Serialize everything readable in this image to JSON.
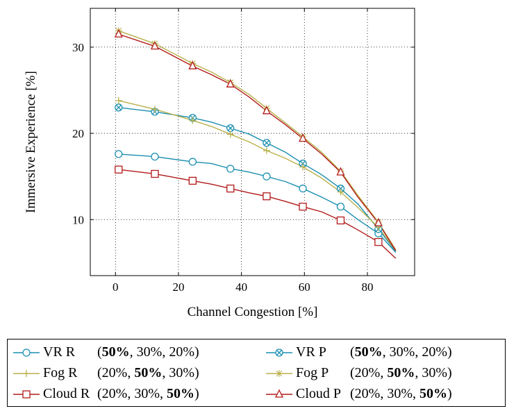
{
  "chart_data": {
    "type": "line",
    "xlabel": "Channel Congestion [%]",
    "ylabel": "Immersive Experience [%]",
    "xlim": [
      -8,
      95
    ],
    "ylim": [
      3.5,
      34.5
    ],
    "xticks": [
      0,
      20,
      40,
      60,
      80
    ],
    "yticks": [
      10,
      20,
      30
    ],
    "grid": "dotted",
    "legend_position": "below",
    "series": [
      {
        "name": "VR R",
        "color": "#1a8fb0",
        "marker": "circle",
        "x": [
          1,
          12.5,
          24.5,
          30.5,
          36.5,
          42.5,
          48,
          54,
          59.5,
          65.5,
          71.5,
          77,
          83.5,
          89
        ],
        "y": [
          17.6,
          17.3,
          16.7,
          16.5,
          15.9,
          15.5,
          15.0,
          14.4,
          13.6,
          12.6,
          11.5,
          10.0,
          8.4,
          6.2
        ],
        "marker_idx": [
          0,
          1,
          2,
          4,
          6,
          8,
          10,
          12
        ],
        "share": [
          "50%",
          "30%",
          "20%"
        ],
        "bold": 0
      },
      {
        "name": "VR P",
        "color": "#1a8fb0",
        "marker": "circle-cross",
        "x": [
          1,
          12.5,
          24.5,
          30.5,
          36.5,
          42.5,
          48,
          54,
          59.5,
          65.5,
          71.5,
          77,
          83.5,
          89
        ],
        "y": [
          23.0,
          22.5,
          21.8,
          21.3,
          20.6,
          19.9,
          18.9,
          17.8,
          16.5,
          15.2,
          13.6,
          11.8,
          8.9,
          6.3
        ],
        "marker_idx": [
          0,
          1,
          2,
          4,
          6,
          8,
          10,
          12
        ],
        "share": [
          "50%",
          "30%",
          "20%"
        ],
        "bold": 0
      },
      {
        "name": "Fog R",
        "color": "#b8b04a",
        "marker": "plus",
        "x": [
          1,
          12.5,
          24.5,
          30.5,
          36.5,
          42.5,
          48,
          54,
          59.5,
          65.5,
          71.5,
          77,
          83.5,
          89
        ],
        "y": [
          23.8,
          22.8,
          21.5,
          20.8,
          19.9,
          19.0,
          18.0,
          17.1,
          16.1,
          14.8,
          13.2,
          11.4,
          9.1,
          6.4
        ],
        "marker_idx": [
          0,
          1,
          2,
          4,
          6,
          8,
          10,
          12
        ],
        "share": [
          "20%",
          "50%",
          "30%"
        ],
        "bold": 1
      },
      {
        "name": "Fog P",
        "color": "#b8b04a",
        "marker": "star",
        "x": [
          1,
          12.5,
          24.5,
          30.5,
          36.5,
          42.5,
          48,
          54,
          59.5,
          65.5,
          71.5,
          77,
          83.5,
          89
        ],
        "y": [
          31.9,
          30.4,
          28.1,
          27.1,
          25.9,
          24.5,
          22.9,
          21.2,
          19.6,
          17.8,
          15.6,
          12.8,
          9.7,
          6.5
        ],
        "marker_idx": [
          0,
          1,
          2,
          4,
          6,
          8,
          10,
          12
        ],
        "share": [
          "20%",
          "50%",
          "30%"
        ],
        "bold": 1
      },
      {
        "name": "Cloud R",
        "color": "#b21a1a",
        "marker": "square",
        "x": [
          1,
          12.5,
          24.5,
          30.5,
          36.5,
          42.5,
          48,
          54,
          59.5,
          65.5,
          71.5,
          77,
          83.5,
          89
        ],
        "y": [
          15.8,
          15.3,
          14.5,
          14.1,
          13.6,
          13.1,
          12.7,
          12.1,
          11.5,
          10.9,
          9.9,
          8.8,
          7.4,
          5.5
        ],
        "marker_idx": [
          0,
          1,
          2,
          4,
          6,
          8,
          10,
          12
        ],
        "share": [
          "20%",
          "30%",
          "50%"
        ],
        "bold": 2
      },
      {
        "name": "Cloud P",
        "color": "#b21a1a",
        "marker": "triangle",
        "x": [
          1,
          12.5,
          24.5,
          30.5,
          36.5,
          42.5,
          48,
          54,
          59.5,
          65.5,
          71.5,
          77,
          83.5,
          89
        ],
        "y": [
          31.5,
          30.1,
          27.8,
          26.8,
          25.7,
          24.2,
          22.6,
          21.0,
          19.4,
          17.6,
          15.5,
          12.6,
          9.6,
          6.4
        ],
        "marker_idx": [
          0,
          1,
          2,
          4,
          6,
          8,
          10,
          12
        ],
        "share": [
          "20%",
          "30%",
          "50%"
        ],
        "bold": 2
      }
    ]
  }
}
